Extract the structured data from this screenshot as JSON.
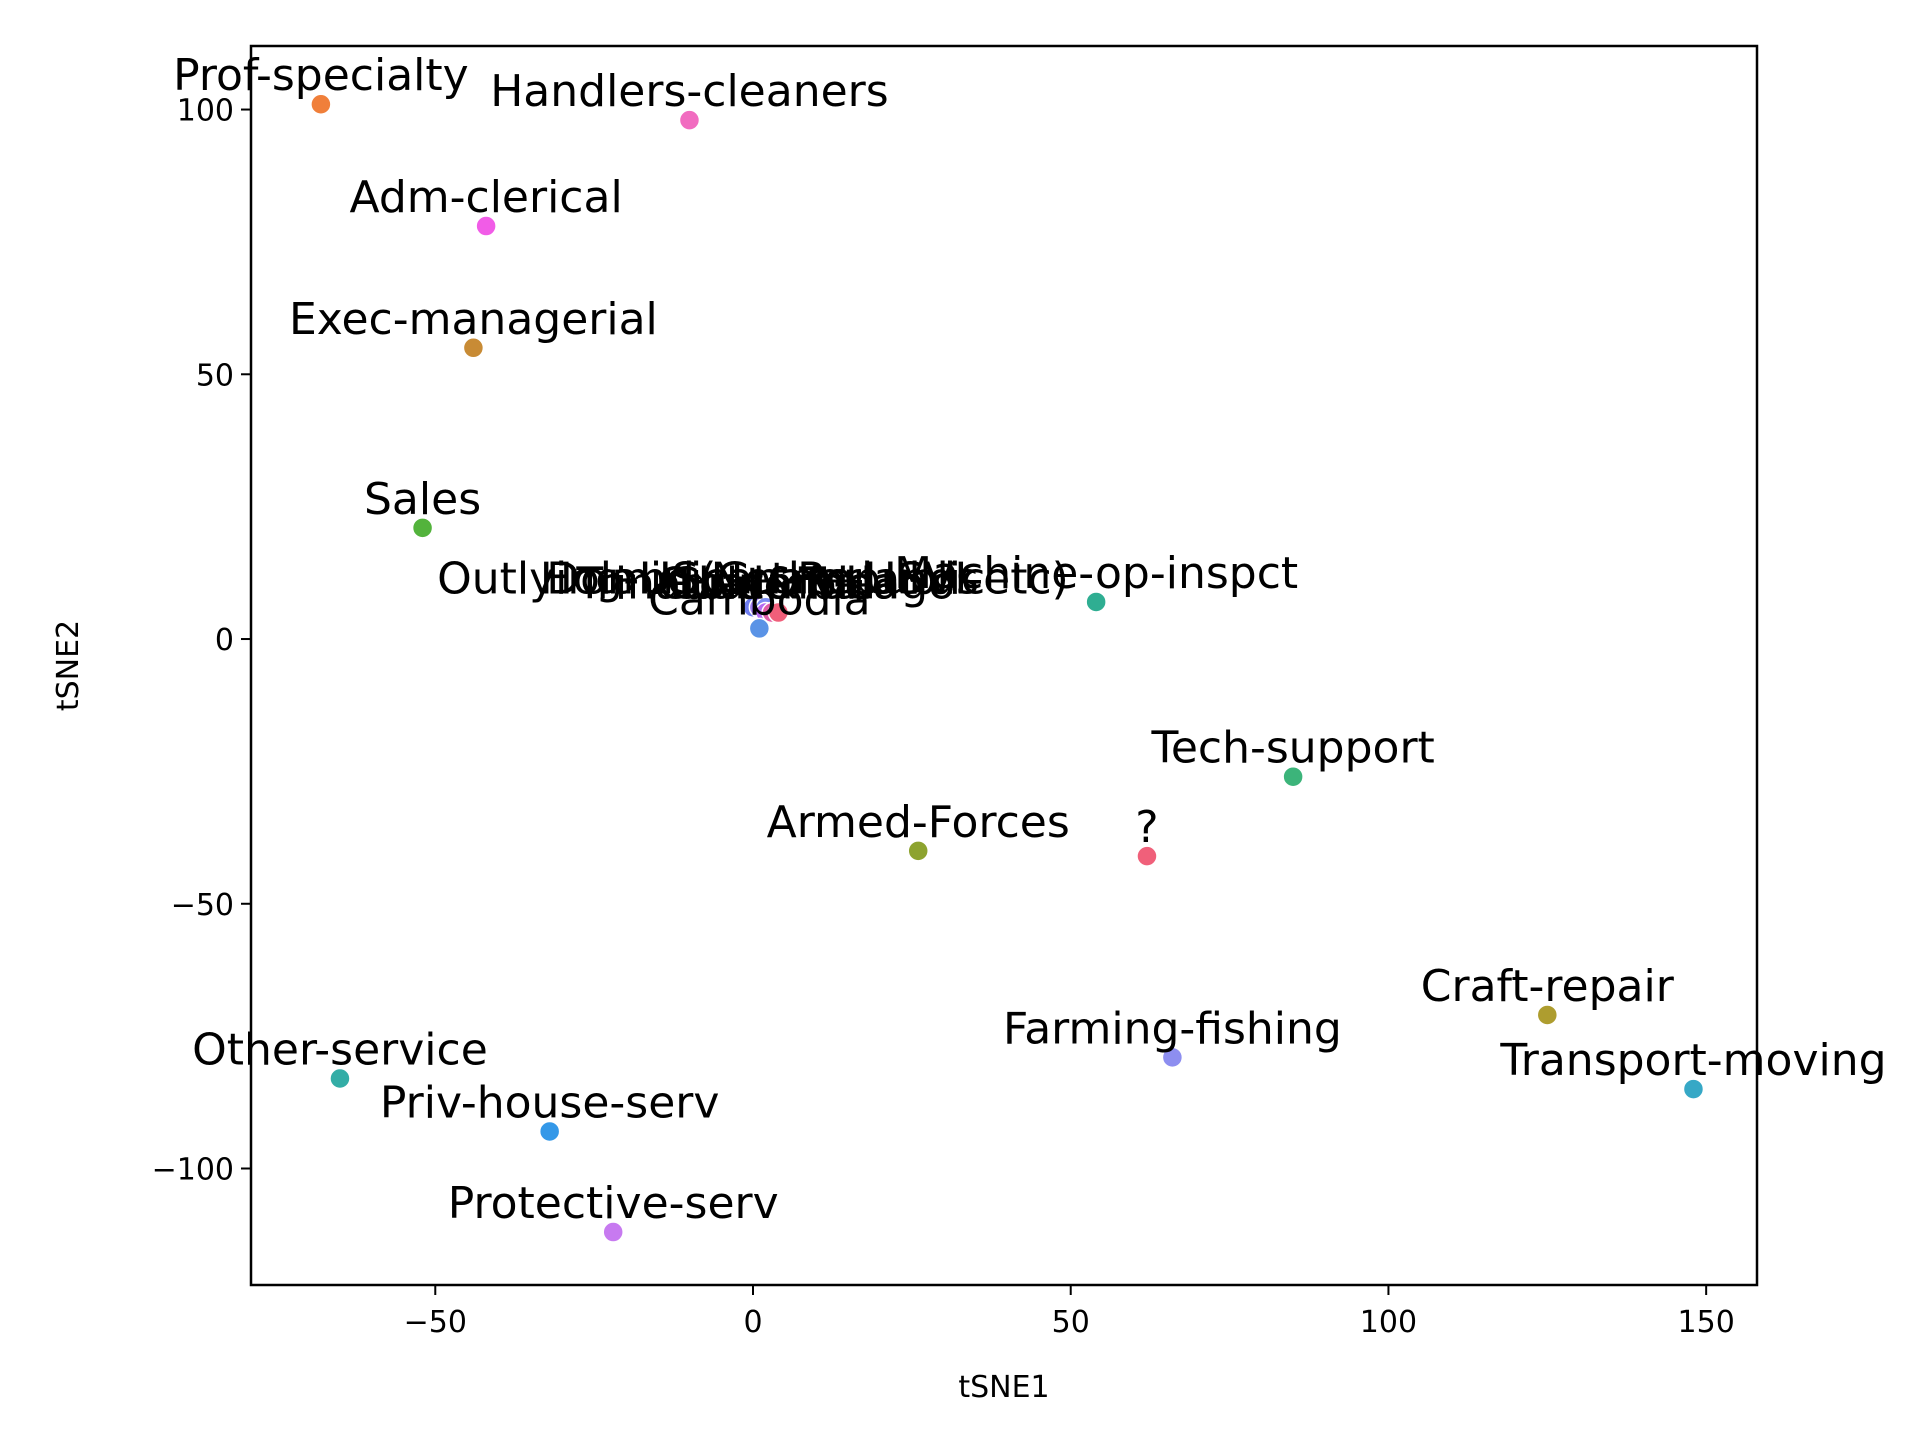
{
  "chart_data": {
    "type": "scatter",
    "xlabel": "tSNE1",
    "ylabel": "tSNE2",
    "xlim": [
      -79,
      158
    ],
    "ylim": [
      -122,
      112
    ],
    "xticks": [
      -50,
      0,
      50,
      100,
      150
    ],
    "yticks": [
      -100,
      -50,
      0,
      50,
      100
    ],
    "xtick_labels": [
      "−50",
      "0",
      "50",
      "100",
      "150"
    ],
    "ytick_labels": [
      "−100",
      "−50",
      "0",
      "50",
      "100"
    ],
    "grid": false,
    "legend": "none",
    "points": [
      {
        "label": "Prof-specialty",
        "x": -68,
        "y": 101,
        "color": "#f07f3a"
      },
      {
        "label": "Handlers-cleaners",
        "x": -10,
        "y": 98,
        "color": "#f16cc0"
      },
      {
        "label": "Adm-clerical",
        "x": -42,
        "y": 78,
        "color": "#f15ce7"
      },
      {
        "label": "Exec-managerial",
        "x": -44,
        "y": 55,
        "color": "#c88b35"
      },
      {
        "label": "Sales",
        "x": -52,
        "y": 21,
        "color": "#53b33c"
      },
      {
        "label": "Outlying-US(Guam-USVI-etc)",
        "x": 0,
        "y": 6,
        "color": "#6f7ef0"
      },
      {
        "label": "Holand-Netherlands",
        "x": 1,
        "y": 6,
        "color": "#a07ff0"
      },
      {
        "label": "Dominican-Republic",
        "x": 2,
        "y": 6,
        "color": "#7c8cf2"
      },
      {
        "label": "Trinadad&Tobago",
        "x": 2,
        "y": 5,
        "color": "#b66cf0"
      },
      {
        "label": "Columbia",
        "x": 3,
        "y": 5,
        "color": "#e05ca8"
      },
      {
        "label": "Guatemala",
        "x": 4,
        "y": 5,
        "color": "#f05f7a"
      },
      {
        "label": "Cambodia",
        "x": 1,
        "y": 2,
        "color": "#5a93e6"
      },
      {
        "label": "Machine-op-inspct",
        "x": 54,
        "y": 7,
        "color": "#2fae92"
      },
      {
        "label": "Tech-support",
        "x": 85,
        "y": -26,
        "color": "#3cb47a"
      },
      {
        "label": "Armed-Forces",
        "x": 26,
        "y": -40,
        "color": "#8da32f"
      },
      {
        "label": "?",
        "x": 62,
        "y": -41,
        "color": "#f0607a"
      },
      {
        "label": "Craft-repair",
        "x": 125,
        "y": -71,
        "color": "#ae9d2f"
      },
      {
        "label": "Farming-fishing",
        "x": 66,
        "y": -79,
        "color": "#8d8ef0"
      },
      {
        "label": "Transport-moving",
        "x": 148,
        "y": -85,
        "color": "#36a8c6"
      },
      {
        "label": "Other-service",
        "x": -65,
        "y": -83,
        "color": "#33ada6"
      },
      {
        "label": "Priv-house-serv",
        "x": -32,
        "y": -93,
        "color": "#3498e8"
      },
      {
        "label": "Protective-serv",
        "x": -22,
        "y": -112,
        "color": "#c77af0"
      }
    ]
  }
}
